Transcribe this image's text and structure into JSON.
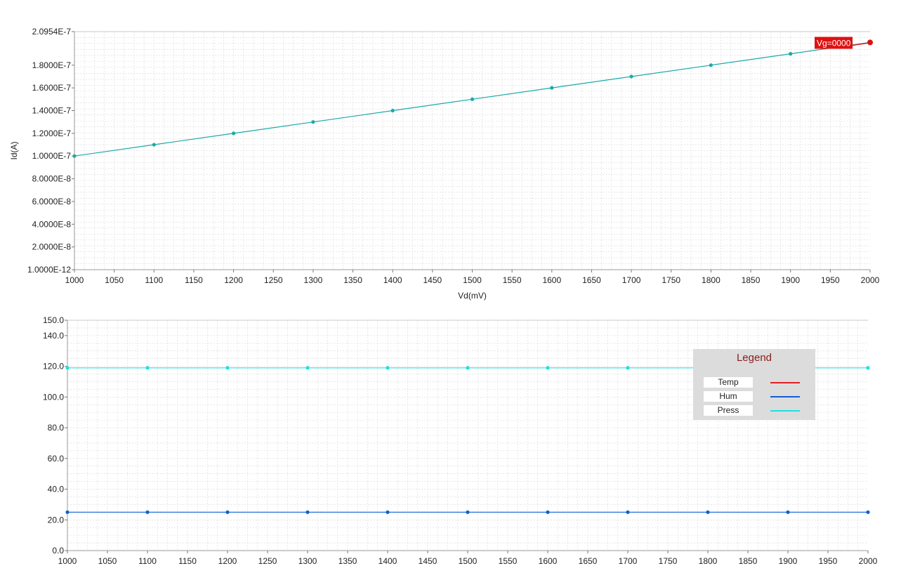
{
  "chart_data": [
    {
      "type": "line",
      "title": "",
      "xlabel": "Vd(mV)",
      "ylabel": "Id(A)",
      "xlim": [
        1000,
        2000
      ],
      "ylim": [
        1e-12,
        2.0954e-07
      ],
      "x_ticks": [
        "1000",
        "1050",
        "1100",
        "1150",
        "1200",
        "1250",
        "1300",
        "1350",
        "1400",
        "1450",
        "1500",
        "1550",
        "1600",
        "1650",
        "1700",
        "1750",
        "1800",
        "1850",
        "1900",
        "1950",
        "2000"
      ],
      "y_ticks": [
        {
          "value": 1e-12,
          "label": "1.0000E-12"
        },
        {
          "value": 2e-08,
          "label": "2.0000E-8"
        },
        {
          "value": 4e-08,
          "label": "4.0000E-8"
        },
        {
          "value": 6e-08,
          "label": "6.0000E-8"
        },
        {
          "value": 8e-08,
          "label": "8.0000E-8"
        },
        {
          "value": 1e-07,
          "label": "1.0000E-7"
        },
        {
          "value": 1.2e-07,
          "label": "1.2000E-7"
        },
        {
          "value": 1.4e-07,
          "label": "1.4000E-7"
        },
        {
          "value": 1.6e-07,
          "label": "1.6000E-7"
        },
        {
          "value": 1.8e-07,
          "label": "1.8000E-7"
        },
        {
          "value": 2.0954e-07,
          "label": "2.0954E-7"
        }
      ],
      "grid": true,
      "series": [
        {
          "color": "#1aaaa8",
          "x": [
            1000,
            1100,
            1200,
            1300,
            1400,
            1500,
            1600,
            1700,
            1800,
            1900,
            2000
          ],
          "values": [
            1e-07,
            1.1e-07,
            1.2e-07,
            1.3e-07,
            1.4e-07,
            1.5e-07,
            1.6e-07,
            1.7e-07,
            1.8e-07,
            1.9e-07,
            2e-07
          ]
        }
      ],
      "annotation": {
        "text": "Vg=0000",
        "x": 1940,
        "y": 1.95e-07,
        "color": "#e01010"
      }
    },
    {
      "type": "line",
      "title": "",
      "xlabel": "",
      "ylabel": "",
      "xlim": [
        1000,
        2000
      ],
      "ylim": [
        0,
        150
      ],
      "x_ticks": [
        "1000",
        "1050",
        "1100",
        "1150",
        "1200",
        "1250",
        "1300",
        "1350",
        "1400",
        "1450",
        "1500",
        "1550",
        "1600",
        "1650",
        "1700",
        "1750",
        "1800",
        "1850",
        "1900",
        "1950",
        "2000"
      ],
      "y_ticks": [
        {
          "value": 0,
          "label": "0.0"
        },
        {
          "value": 20,
          "label": "20.0"
        },
        {
          "value": 40,
          "label": "40.0"
        },
        {
          "value": 60,
          "label": "60.0"
        },
        {
          "value": 80,
          "label": "80.0"
        },
        {
          "value": 100,
          "label": "100.0"
        },
        {
          "value": 120,
          "label": "120.0"
        },
        {
          "value": 140,
          "label": "140.0"
        },
        {
          "value": 150,
          "label": "150.0"
        }
      ],
      "grid": true,
      "legend_position": "top-right",
      "legend_title": "Legend",
      "series": [
        {
          "name": "Temp",
          "color": "#e02020",
          "x": [],
          "values": []
        },
        {
          "name": "Hum",
          "color": "#1060d0",
          "x": [
            1000,
            1100,
            1200,
            1300,
            1400,
            1500,
            1600,
            1700,
            1800,
            1900,
            2000
          ],
          "values": [
            25,
            25,
            25,
            25,
            25,
            25,
            25,
            25,
            25,
            25,
            25
          ]
        },
        {
          "name": "Press",
          "color": "#20e0e0",
          "x": [
            1000,
            1100,
            1200,
            1300,
            1400,
            1500,
            1600,
            1700,
            1800,
            1900,
            2000
          ],
          "values": [
            119,
            119,
            119,
            119,
            119,
            119,
            119,
            119,
            119,
            119,
            119
          ]
        }
      ]
    }
  ]
}
